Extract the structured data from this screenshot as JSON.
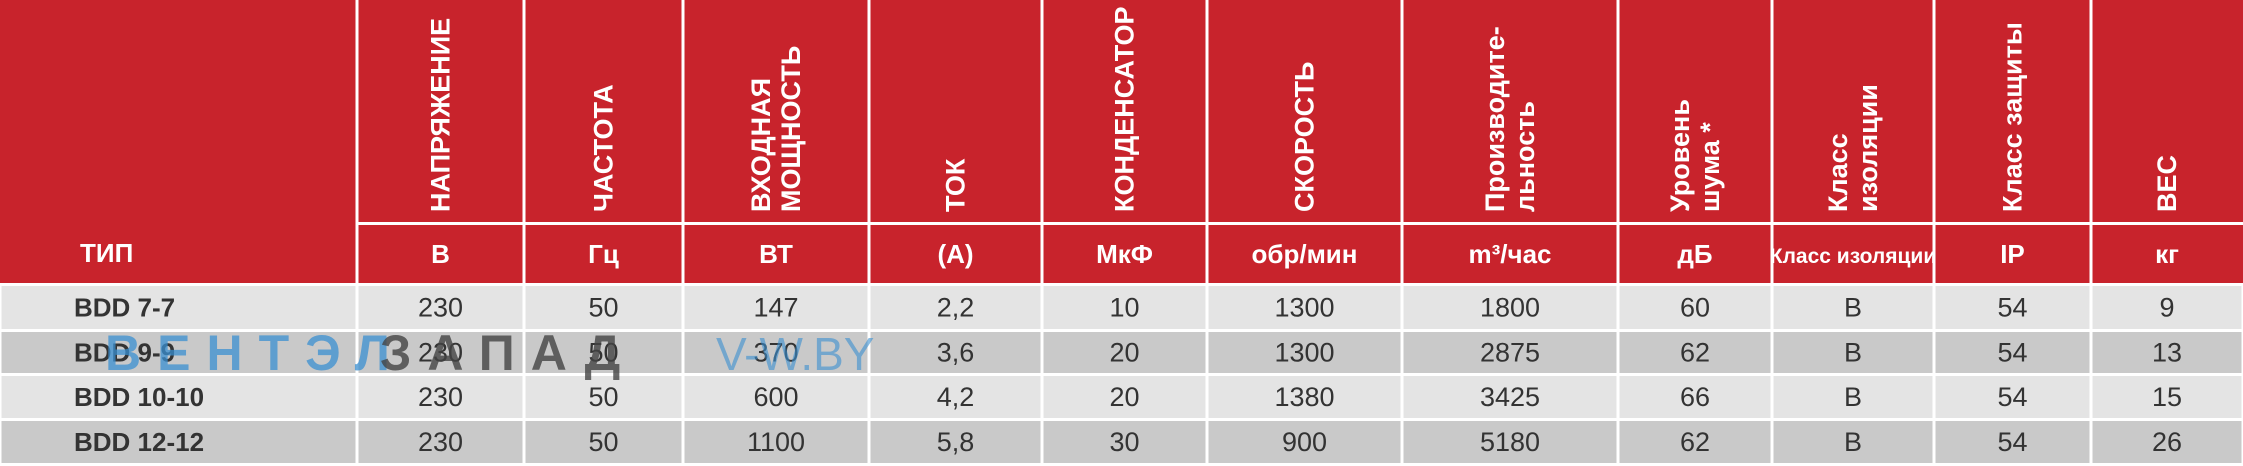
{
  "table": {
    "type_header": "ТИП",
    "headers": [
      [
        "НАПРЯЖЕНИЕ"
      ],
      [
        "ЧАСТОТА"
      ],
      [
        "ВХОДНАЯ",
        "МОЩНОСТЬ"
      ],
      [
        "ТОК"
      ],
      [
        "КОНДЕНСАТОР"
      ],
      [
        "СКОРОСТЬ"
      ],
      [
        "Производите-",
        "льность"
      ],
      [
        "Уровень",
        "шума *"
      ],
      [
        "Класс",
        "изоляции"
      ],
      [
        "Класс защиты"
      ],
      [
        "ВЕС"
      ]
    ],
    "units": [
      "В",
      "Гц",
      "ВТ",
      "(А)",
      "МкФ",
      "обр/мин",
      "m³/час",
      "дБ",
      "Класс изоляции",
      "IP",
      "кг"
    ],
    "rows": [
      [
        "BDD 7-7",
        "230",
        "50",
        "147",
        "2,2",
        "10",
        "1300",
        "1800",
        "60",
        "B",
        "54",
        "9"
      ],
      [
        "BDD 9-9",
        "230",
        "50",
        "370",
        "3,6",
        "20",
        "1300",
        "2875",
        "62",
        "B",
        "54",
        "13"
      ],
      [
        "BDD 10-10",
        "230",
        "50",
        "600",
        "4,2",
        "20",
        "1380",
        "3425",
        "66",
        "B",
        "54",
        "15"
      ],
      [
        "BDD 12-12",
        "230",
        "50",
        "1100",
        "5,8",
        "30",
        "900",
        "5180",
        "62",
        "B",
        "54",
        "26"
      ]
    ]
  },
  "watermark": {
    "brand_blue": "ВЕНТЭЛ",
    "brand_dark": "ЗАПАД",
    "site": "V-W.BY"
  }
}
